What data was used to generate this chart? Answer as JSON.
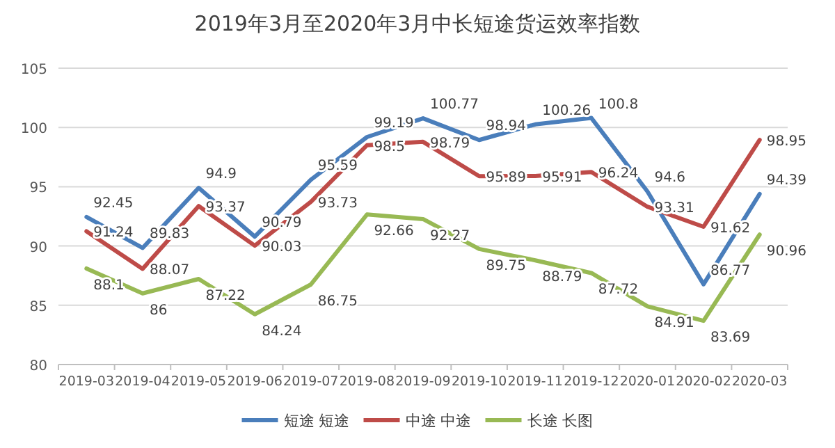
{
  "chart_data": {
    "type": "line",
    "title": "2019年3月至2020年3月中长短途货运效率指数",
    "categories": [
      "2019-03",
      "2019-04",
      "2019-05",
      "2019-06",
      "2019-07",
      "2019-08",
      "2019-09",
      "2019-10",
      "2019-11",
      "2019-12",
      "2020-01",
      "2020-02",
      "2020-03"
    ],
    "series": [
      {
        "name": "短途 短途",
        "color": "#4a7ebb",
        "values": [
          92.45,
          89.83,
          94.9,
          90.79,
          95.59,
          99.19,
          100.77,
          98.94,
          100.26,
          100.8,
          94.6,
          86.77,
          94.39
        ]
      },
      {
        "name": "中途 中途",
        "color": "#be4b48",
        "values": [
          91.24,
          88.07,
          93.37,
          90.03,
          93.73,
          98.5,
          98.79,
          95.89,
          95.91,
          96.24,
          93.31,
          91.62,
          98.95
        ]
      },
      {
        "name": "长途 长图",
        "color": "#98b954",
        "values": [
          88.1,
          86,
          87.22,
          84.24,
          86.75,
          92.66,
          92.27,
          89.75,
          88.79,
          87.72,
          84.91,
          83.69,
          90.96
        ]
      }
    ],
    "ylim": [
      80,
      105
    ],
    "yticks": [
      80,
      85,
      90,
      95,
      100,
      105
    ],
    "grid": "y",
    "legend": "bottom",
    "data_labels": true,
    "marker": "none",
    "line_style": "solid"
  }
}
